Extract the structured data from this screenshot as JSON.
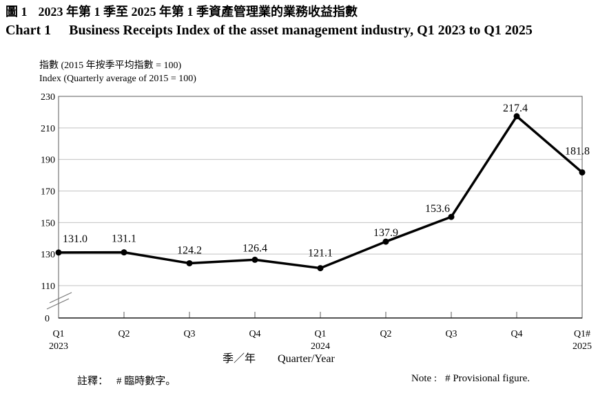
{
  "header": {
    "title_zh_label": "圖 1",
    "title_zh_text": "2023 年第 1 季至 2025 年第 1 季資產管理業的業務收益指數",
    "title_en_label": "Chart 1",
    "title_en_text": "Business Receipts Index of the asset management industry, Q1 2023 to Q1 2025"
  },
  "footer": {
    "note_zh_label": "註釋：",
    "note_zh_text": "# 臨時數字。",
    "note_en_label": "Note :",
    "note_en_text": "# Provisional figure."
  },
  "chart_data": {
    "type": "line",
    "title": "Business Receipts Index of the asset management industry, Q1 2023 to Q1 2025",
    "ylabel_zh": "指數 (2015 年按季平均指數 = 100)",
    "ylabel_en": "Index (Quarterly average of 2015 = 100)",
    "xlabel_zh": "季／年",
    "xlabel_en": "Quarter/Year",
    "categories": [
      "Q1",
      "Q2",
      "Q3",
      "Q4",
      "Q1",
      "Q2",
      "Q3",
      "Q4",
      "Q1#"
    ],
    "category_years": [
      "2023",
      "",
      "",
      "",
      "2024",
      "",
      "",
      "",
      "2025"
    ],
    "values": [
      131.0,
      131.1,
      124.2,
      126.4,
      121.1,
      137.9,
      153.6,
      217.4,
      181.8
    ],
    "point_labels": [
      "131.0",
      "131.1",
      "124.2",
      "126.4",
      "121.1",
      "137.9",
      "153.6",
      "217.4",
      "181.8"
    ],
    "yticks": [
      230,
      210,
      190,
      170,
      150,
      130,
      110
    ],
    "origin_label": "0",
    "axis_break": true,
    "ylim": [
      110,
      230
    ],
    "grid": true,
    "legend": "none",
    "line_color": "#000000",
    "grid_color": "#c2c2c2",
    "frame_color": "#595959",
    "axis_color": "#1a1a1a",
    "label_offsets": {
      "dx": [
        24,
        0,
        0,
        0,
        0,
        0,
        -20,
        -2,
        -7
      ],
      "dy": [
        -15,
        -15,
        -14,
        -12,
        -17,
        -8,
        -7,
        -7,
        -26
      ]
    }
  }
}
